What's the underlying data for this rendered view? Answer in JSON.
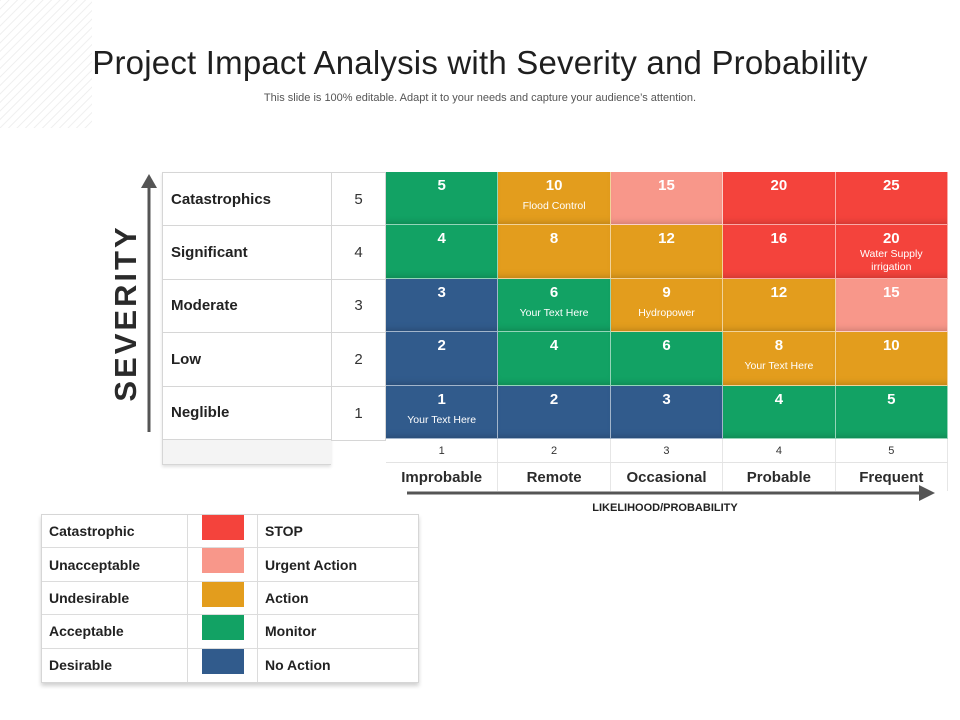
{
  "title": "Project Impact Analysis with Severity and Probability",
  "subtitle": "This slide is 100% editable. Adapt it to your needs and capture your audience’s attention.",
  "severity_axis": {
    "label": "SEVERITY",
    "rows": [
      {
        "label": "Catastrophics",
        "value": "5"
      },
      {
        "label": "Significant",
        "value": "4"
      },
      {
        "label": "Moderate",
        "value": "3"
      },
      {
        "label": "Low",
        "value": "2"
      },
      {
        "label": "Neglible",
        "value": "1"
      }
    ]
  },
  "likelihood_axis": {
    "title": "LIKELIHOOD/PROBABILITY",
    "numbers": [
      "1",
      "2",
      "3",
      "4",
      "5"
    ],
    "categories": [
      "Improbable",
      "Remote",
      "Occasional",
      "Probable",
      "Frequent"
    ]
  },
  "colors": {
    "stop": "#f4433c",
    "urgent": "#f8978a",
    "action": "#e39d1d",
    "monitor": "#12a264",
    "no_action": "#315b8c"
  },
  "matrix": [
    [
      {
        "value": "5",
        "level": "monitor",
        "note": ""
      },
      {
        "value": "10",
        "level": "action",
        "note": "Flood Control"
      },
      {
        "value": "15",
        "level": "urgent",
        "note": ""
      },
      {
        "value": "20",
        "level": "stop",
        "note": ""
      },
      {
        "value": "25",
        "level": "stop",
        "note": ""
      }
    ],
    [
      {
        "value": "4",
        "level": "monitor",
        "note": ""
      },
      {
        "value": "8",
        "level": "action",
        "note": ""
      },
      {
        "value": "12",
        "level": "action",
        "note": ""
      },
      {
        "value": "16",
        "level": "stop",
        "note": ""
      },
      {
        "value": "20",
        "level": "stop",
        "note": "Water Supply irrigation"
      }
    ],
    [
      {
        "value": "3",
        "level": "no_action",
        "note": ""
      },
      {
        "value": "6",
        "level": "monitor",
        "note": "Your Text Here"
      },
      {
        "value": "9",
        "level": "action",
        "note": "Hydropower"
      },
      {
        "value": "12",
        "level": "action",
        "note": ""
      },
      {
        "value": "15",
        "level": "urgent",
        "note": ""
      }
    ],
    [
      {
        "value": "2",
        "level": "no_action",
        "note": ""
      },
      {
        "value": "4",
        "level": "monitor",
        "note": ""
      },
      {
        "value": "6",
        "level": "monitor",
        "note": ""
      },
      {
        "value": "8",
        "level": "action",
        "note": "Your Text Here"
      },
      {
        "value": "10",
        "level": "action",
        "note": ""
      }
    ],
    [
      {
        "value": "1",
        "level": "no_action",
        "note": "Your Text Here"
      },
      {
        "value": "2",
        "level": "no_action",
        "note": ""
      },
      {
        "value": "3",
        "level": "no_action",
        "note": ""
      },
      {
        "value": "4",
        "level": "monitor",
        "note": ""
      },
      {
        "value": "5",
        "level": "monitor",
        "note": ""
      }
    ]
  ],
  "legend": [
    {
      "level": "Catastrophic",
      "color": "#f4433c",
      "action": "STOP"
    },
    {
      "level": "Unacceptable",
      "color": "#f8978a",
      "action": "Urgent Action"
    },
    {
      "level": "Undesirable",
      "color": "#e39d1d",
      "action": "Action"
    },
    {
      "level": "Acceptable",
      "color": "#12a264",
      "action": "Monitor"
    },
    {
      "level": "Desirable",
      "color": "#315b8c",
      "action": "No Action"
    }
  ]
}
